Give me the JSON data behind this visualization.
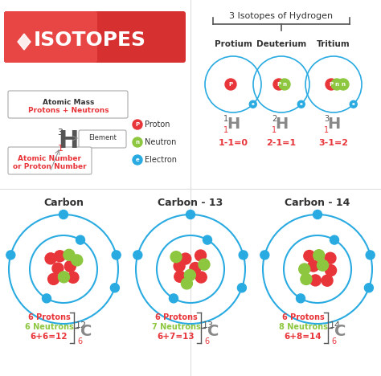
{
  "bg_color": "#ffffff",
  "title_text": "ISOTOPES",
  "title_bg": [
    "#e8353a",
    "#c0292c"
  ],
  "section_line_color": "#cccccc",
  "hydrogen_title": "3 Isotopes of Hydrogen",
  "hydrogen_isotopes": [
    "Protium",
    "Deuterium",
    "Tritium"
  ],
  "hydrogen_symbols": [
    "H",
    "H",
    "H"
  ],
  "hydrogen_mass": [
    "1",
    "2",
    "3"
  ],
  "hydrogen_atomic": [
    "1",
    "1",
    "1"
  ],
  "hydrogen_equations": [
    "1-1=0",
    "2-1=1",
    "3-1=2"
  ],
  "carbon_titles": [
    "Carbon",
    "Carbon - 13",
    "Carbon - 14"
  ],
  "carbon_protons": [
    6,
    6,
    6
  ],
  "carbon_neutrons": [
    6,
    7,
    8
  ],
  "carbon_mass": [
    "12",
    "13",
    "14"
  ],
  "carbon_equations": [
    "6+6=12",
    "6+7=13",
    "6+8=14"
  ],
  "proton_color": "#e8353a",
  "neutron_color": "#8dc63f",
  "electron_color": "#29abe2",
  "electron_orbit_color": "#29abe2",
  "legend_proton_color": "#e8353a",
  "legend_neutron_color": "#8dc63f",
  "legend_electron_color": "#29abe2",
  "atomic_mass_color": "#333333",
  "protons_neutrons_color": "#e8353a",
  "red_text_color": "#e8353a",
  "green_text_color": "#8dc63f",
  "dark_text_color": "#333333",
  "label_color": "#555555"
}
